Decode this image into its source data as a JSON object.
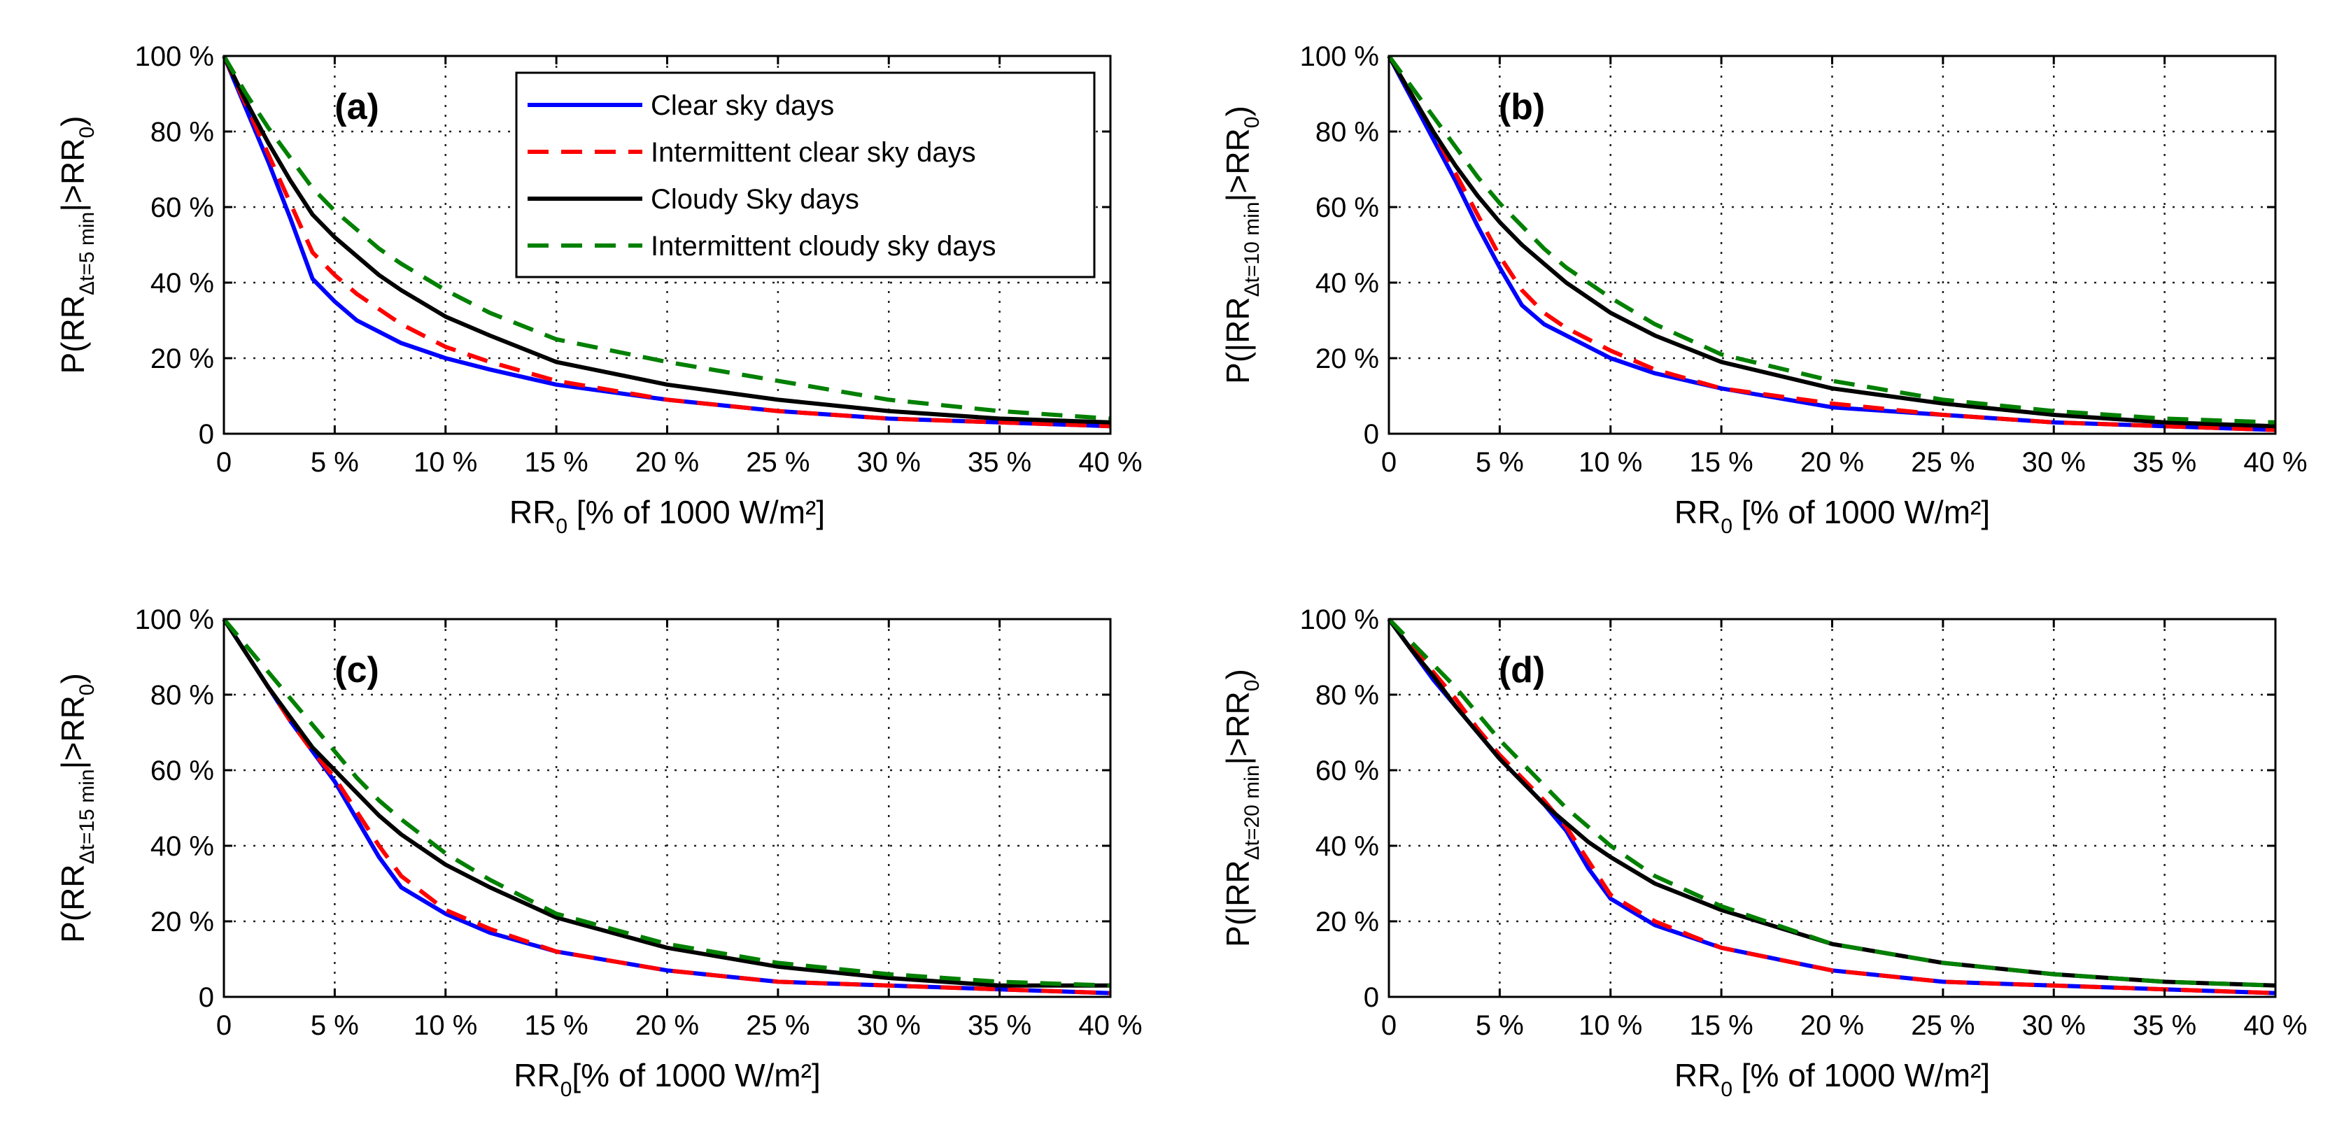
{
  "colors": {
    "clear": "#0000ff",
    "intermittent_clear": "#ff0000",
    "cloudy": "#000000",
    "intermittent_cloudy": "#008000"
  },
  "legend": [
    {
      "name": "Clear sky days",
      "key": "clear",
      "dashed": false
    },
    {
      "name": "Intermittent clear sky days",
      "key": "intermittent_clear",
      "dashed": true
    },
    {
      "name": "Cloudy Sky days",
      "key": "cloudy",
      "dashed": false
    },
    {
      "name": "Intermittent cloudy sky days",
      "key": "intermittent_cloudy",
      "dashed": true
    }
  ],
  "chart_data": [
    {
      "type": "line",
      "label": "(a)",
      "ylabel": {
        "pre": "P(RR",
        "sub": "Δt=5 min",
        "post": "|>RR",
        "sub2": "0",
        "end": ")"
      },
      "xlabel": {
        "pre": "RR",
        "sub": "0",
        "post": " [% of 1000 W/m²]"
      },
      "xlim": [
        0,
        40
      ],
      "ylim": [
        0,
        100
      ],
      "xticks": [
        0,
        5,
        10,
        15,
        20,
        25,
        30,
        35,
        40
      ],
      "xtick_labels": [
        "0",
        "5 %",
        "10 %",
        "15 %",
        "20 %",
        "25 %",
        "30 %",
        "35 %",
        "40 %"
      ],
      "yticks": [
        0,
        20,
        40,
        60,
        80,
        100
      ],
      "ytick_labels": [
        "0",
        "20 %",
        "40 %",
        "60 %",
        "80 %",
        "100 %"
      ],
      "x": [
        0,
        1,
        2,
        3,
        4,
        5,
        6,
        7,
        8,
        10,
        12,
        15,
        20,
        25,
        30,
        35,
        40
      ],
      "series": [
        {
          "name": "Clear sky days",
          "key": "clear",
          "values": [
            100,
            86,
            72,
            57,
            41,
            35,
            30,
            27,
            24,
            20,
            17,
            13,
            9,
            6,
            4,
            3,
            2
          ]
        },
        {
          "name": "Intermittent clear sky days",
          "key": "intermittent_clear",
          "values": [
            100,
            87,
            74,
            61,
            48,
            42,
            37,
            33,
            29,
            23,
            19,
            14,
            9,
            6,
            4,
            3,
            2
          ]
        },
        {
          "name": "Cloudy Sky days",
          "key": "cloudy",
          "values": [
            100,
            88,
            77,
            67,
            58,
            52,
            47,
            42,
            38,
            31,
            26,
            19,
            13,
            9,
            6,
            4,
            3
          ]
        },
        {
          "name": "Intermittent cloudy sky days",
          "key": "intermittent_cloudy",
          "values": [
            100,
            90,
            81,
            73,
            65,
            59,
            54,
            49,
            45,
            38,
            32,
            25,
            19,
            14,
            9,
            6,
            4
          ]
        }
      ]
    },
    {
      "type": "line",
      "label": "(b)",
      "ylabel": {
        "pre": "P(|RR",
        "sub": "Δt=10 min",
        "post": "|>RR",
        "sub2": "0",
        "end": ")"
      },
      "xlabel": {
        "pre": "RR",
        "sub": "0",
        "post": " [% of 1000 W/m²]"
      },
      "xlim": [
        0,
        40
      ],
      "ylim": [
        0,
        100
      ],
      "xticks": [
        0,
        5,
        10,
        15,
        20,
        25,
        30,
        35,
        40
      ],
      "xtick_labels": [
        "0",
        "5 %",
        "10 %",
        "15 %",
        "20 %",
        "25 %",
        "30 %",
        "35 %",
        "40 %"
      ],
      "yticks": [
        0,
        20,
        40,
        60,
        80,
        100
      ],
      "ytick_labels": [
        "0",
        "20 %",
        "40 %",
        "60 %",
        "80 %",
        "100 %"
      ],
      "x": [
        0,
        1,
        2,
        3,
        4,
        5,
        6,
        7,
        8,
        10,
        12,
        15,
        20,
        25,
        30,
        35,
        40
      ],
      "series": [
        {
          "name": "Clear sky days",
          "key": "clear",
          "values": [
            100,
            89,
            78,
            67,
            55,
            44,
            34,
            29,
            26,
            20,
            16,
            12,
            7,
            5,
            3,
            2,
            1
          ]
        },
        {
          "name": "Intermittent clear sky days",
          "key": "intermittent_clear",
          "values": [
            100,
            90,
            80,
            69,
            58,
            47,
            38,
            32,
            28,
            22,
            17,
            12,
            8,
            5,
            3,
            2,
            1
          ]
        },
        {
          "name": "Cloudy Sky days",
          "key": "cloudy",
          "values": [
            100,
            90,
            80,
            71,
            63,
            56,
            50,
            45,
            40,
            32,
            26,
            19,
            12,
            8,
            5,
            3,
            2
          ]
        },
        {
          "name": "Intermittent cloudy sky days",
          "key": "intermittent_cloudy",
          "values": [
            100,
            92,
            84,
            76,
            68,
            61,
            55,
            49,
            44,
            36,
            29,
            21,
            14,
            9,
            6,
            4,
            3
          ]
        }
      ]
    },
    {
      "type": "line",
      "label": "(c)",
      "ylabel": {
        "pre": "P(RR",
        "sub": "Δt=15 min",
        "post": "|>RR",
        "sub2": "0",
        "end": ")"
      },
      "xlabel": {
        "pre": "RR",
        "sub": "0",
        "post": "[% of 1000 W/m²]"
      },
      "xlim": [
        0,
        40
      ],
      "ylim": [
        0,
        100
      ],
      "xticks": [
        0,
        5,
        10,
        15,
        20,
        25,
        30,
        35,
        40
      ],
      "xtick_labels": [
        "0",
        "5 %",
        "10 %",
        "15 %",
        "20 %",
        "25 %",
        "30 %",
        "35 %",
        "40 %"
      ],
      "yticks": [
        0,
        20,
        40,
        60,
        80,
        100
      ],
      "ytick_labels": [
        "0",
        "20 %",
        "40 %",
        "60 %",
        "80 %",
        "100 %"
      ],
      "x": [
        0,
        1,
        2,
        3,
        4,
        5,
        6,
        7,
        8,
        10,
        12,
        15,
        20,
        25,
        30,
        35,
        40
      ],
      "series": [
        {
          "name": "Clear sky days",
          "key": "clear",
          "values": [
            100,
            91,
            82,
            73,
            65,
            57,
            47,
            37,
            29,
            22,
            17,
            12,
            7,
            4,
            3,
            2,
            1
          ]
        },
        {
          "name": "Intermittent clear sky days",
          "key": "intermittent_clear",
          "values": [
            100,
            91,
            82,
            73,
            65,
            58,
            49,
            40,
            32,
            23,
            18,
            12,
            7,
            4,
            3,
            2,
            1
          ]
        },
        {
          "name": "Cloudy Sky days",
          "key": "cloudy",
          "values": [
            100,
            91,
            82,
            74,
            66,
            60,
            54,
            48,
            43,
            35,
            29,
            21,
            13,
            8,
            5,
            3,
            3
          ]
        },
        {
          "name": "Intermittent cloudy sky days",
          "key": "intermittent_cloudy",
          "values": [
            100,
            93,
            86,
            79,
            72,
            65,
            58,
            52,
            47,
            38,
            31,
            22,
            14,
            9,
            6,
            4,
            3
          ]
        }
      ]
    },
    {
      "type": "line",
      "label": "(d)",
      "ylabel": {
        "pre": "P(|RR",
        "sub": "Δt=20 min",
        "post": "|>RR",
        "sub2": "0",
        "end": ")"
      },
      "xlabel": {
        "pre": "RR",
        "sub": "0",
        "post": " [% of 1000 W/m²]"
      },
      "xlim": [
        0,
        40
      ],
      "ylim": [
        0,
        100
      ],
      "xticks": [
        0,
        5,
        10,
        15,
        20,
        25,
        30,
        35,
        40
      ],
      "xtick_labels": [
        "0",
        "5 %",
        "10 %",
        "15 %",
        "20 %",
        "25 %",
        "30 %",
        "35 %",
        "40 %"
      ],
      "yticks": [
        0,
        20,
        40,
        60,
        80,
        100
      ],
      "ytick_labels": [
        "0",
        "20 %",
        "40 %",
        "60 %",
        "80 %",
        "100 %"
      ],
      "x": [
        0,
        1,
        2,
        3,
        4,
        5,
        6,
        7,
        8,
        9,
        10,
        12,
        15,
        20,
        25,
        30,
        35,
        40
      ],
      "series": [
        {
          "name": "Clear sky days",
          "key": "clear",
          "values": [
            100,
            92,
            84,
            77,
            70,
            63,
            57,
            51,
            44,
            34,
            26,
            19,
            13,
            7,
            4,
            3,
            2,
            1
          ]
        },
        {
          "name": "Intermittent clear sky days",
          "key": "intermittent_clear",
          "values": [
            100,
            93,
            86,
            79,
            71,
            64,
            58,
            52,
            45,
            36,
            27,
            20,
            13,
            7,
            4,
            3,
            2,
            1
          ]
        },
        {
          "name": "Cloudy Sky days",
          "key": "cloudy",
          "values": [
            100,
            92,
            85,
            77,
            70,
            63,
            57,
            51,
            46,
            41,
            37,
            30,
            23,
            14,
            9,
            6,
            4,
            3
          ]
        },
        {
          "name": "Intermittent cloudy sky days",
          "key": "intermittent_cloudy",
          "values": [
            100,
            94,
            88,
            82,
            75,
            68,
            62,
            56,
            50,
            45,
            40,
            32,
            24,
            14,
            9,
            6,
            4,
            3
          ]
        }
      ]
    }
  ]
}
